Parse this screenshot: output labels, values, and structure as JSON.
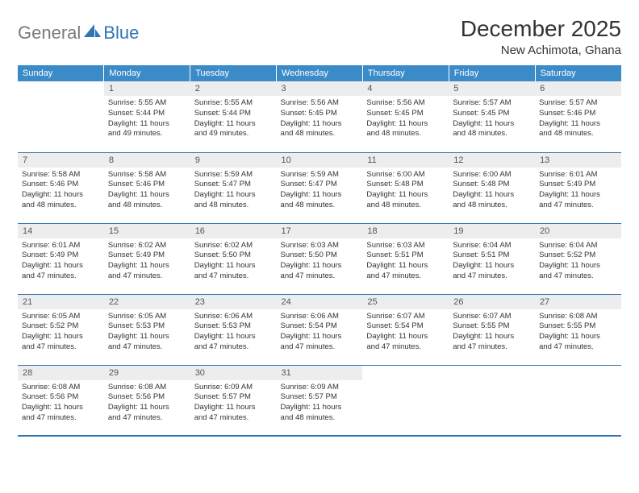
{
  "logo": {
    "part1": "General",
    "part2": "Blue"
  },
  "title": "December 2025",
  "location": "New Achimota, Ghana",
  "colors": {
    "header_bg": "#3b8bc9",
    "header_text": "#ffffff",
    "daynum_bg": "#ededed",
    "daynum_text": "#555555",
    "border": "#2f75b5",
    "logo_gray": "#7a7a7a",
    "logo_blue": "#2f75b5",
    "body_text": "#333333"
  },
  "weekdays": [
    "Sunday",
    "Monday",
    "Tuesday",
    "Wednesday",
    "Thursday",
    "Friday",
    "Saturday"
  ],
  "weeks": [
    [
      {
        "empty": true
      },
      {
        "n": "1",
        "sr": "Sunrise: 5:55 AM",
        "ss": "Sunset: 5:44 PM",
        "d1": "Daylight: 11 hours",
        "d2": "and 49 minutes."
      },
      {
        "n": "2",
        "sr": "Sunrise: 5:55 AM",
        "ss": "Sunset: 5:44 PM",
        "d1": "Daylight: 11 hours",
        "d2": "and 49 minutes."
      },
      {
        "n": "3",
        "sr": "Sunrise: 5:56 AM",
        "ss": "Sunset: 5:45 PM",
        "d1": "Daylight: 11 hours",
        "d2": "and 48 minutes."
      },
      {
        "n": "4",
        "sr": "Sunrise: 5:56 AM",
        "ss": "Sunset: 5:45 PM",
        "d1": "Daylight: 11 hours",
        "d2": "and 48 minutes."
      },
      {
        "n": "5",
        "sr": "Sunrise: 5:57 AM",
        "ss": "Sunset: 5:45 PM",
        "d1": "Daylight: 11 hours",
        "d2": "and 48 minutes."
      },
      {
        "n": "6",
        "sr": "Sunrise: 5:57 AM",
        "ss": "Sunset: 5:46 PM",
        "d1": "Daylight: 11 hours",
        "d2": "and 48 minutes."
      }
    ],
    [
      {
        "n": "7",
        "sr": "Sunrise: 5:58 AM",
        "ss": "Sunset: 5:46 PM",
        "d1": "Daylight: 11 hours",
        "d2": "and 48 minutes."
      },
      {
        "n": "8",
        "sr": "Sunrise: 5:58 AM",
        "ss": "Sunset: 5:46 PM",
        "d1": "Daylight: 11 hours",
        "d2": "and 48 minutes."
      },
      {
        "n": "9",
        "sr": "Sunrise: 5:59 AM",
        "ss": "Sunset: 5:47 PM",
        "d1": "Daylight: 11 hours",
        "d2": "and 48 minutes."
      },
      {
        "n": "10",
        "sr": "Sunrise: 5:59 AM",
        "ss": "Sunset: 5:47 PM",
        "d1": "Daylight: 11 hours",
        "d2": "and 48 minutes."
      },
      {
        "n": "11",
        "sr": "Sunrise: 6:00 AM",
        "ss": "Sunset: 5:48 PM",
        "d1": "Daylight: 11 hours",
        "d2": "and 48 minutes."
      },
      {
        "n": "12",
        "sr": "Sunrise: 6:00 AM",
        "ss": "Sunset: 5:48 PM",
        "d1": "Daylight: 11 hours",
        "d2": "and 48 minutes."
      },
      {
        "n": "13",
        "sr": "Sunrise: 6:01 AM",
        "ss": "Sunset: 5:49 PM",
        "d1": "Daylight: 11 hours",
        "d2": "and 47 minutes."
      }
    ],
    [
      {
        "n": "14",
        "sr": "Sunrise: 6:01 AM",
        "ss": "Sunset: 5:49 PM",
        "d1": "Daylight: 11 hours",
        "d2": "and 47 minutes."
      },
      {
        "n": "15",
        "sr": "Sunrise: 6:02 AM",
        "ss": "Sunset: 5:49 PM",
        "d1": "Daylight: 11 hours",
        "d2": "and 47 minutes."
      },
      {
        "n": "16",
        "sr": "Sunrise: 6:02 AM",
        "ss": "Sunset: 5:50 PM",
        "d1": "Daylight: 11 hours",
        "d2": "and 47 minutes."
      },
      {
        "n": "17",
        "sr": "Sunrise: 6:03 AM",
        "ss": "Sunset: 5:50 PM",
        "d1": "Daylight: 11 hours",
        "d2": "and 47 minutes."
      },
      {
        "n": "18",
        "sr": "Sunrise: 6:03 AM",
        "ss": "Sunset: 5:51 PM",
        "d1": "Daylight: 11 hours",
        "d2": "and 47 minutes."
      },
      {
        "n": "19",
        "sr": "Sunrise: 6:04 AM",
        "ss": "Sunset: 5:51 PM",
        "d1": "Daylight: 11 hours",
        "d2": "and 47 minutes."
      },
      {
        "n": "20",
        "sr": "Sunrise: 6:04 AM",
        "ss": "Sunset: 5:52 PM",
        "d1": "Daylight: 11 hours",
        "d2": "and 47 minutes."
      }
    ],
    [
      {
        "n": "21",
        "sr": "Sunrise: 6:05 AM",
        "ss": "Sunset: 5:52 PM",
        "d1": "Daylight: 11 hours",
        "d2": "and 47 minutes."
      },
      {
        "n": "22",
        "sr": "Sunrise: 6:05 AM",
        "ss": "Sunset: 5:53 PM",
        "d1": "Daylight: 11 hours",
        "d2": "and 47 minutes."
      },
      {
        "n": "23",
        "sr": "Sunrise: 6:06 AM",
        "ss": "Sunset: 5:53 PM",
        "d1": "Daylight: 11 hours",
        "d2": "and 47 minutes."
      },
      {
        "n": "24",
        "sr": "Sunrise: 6:06 AM",
        "ss": "Sunset: 5:54 PM",
        "d1": "Daylight: 11 hours",
        "d2": "and 47 minutes."
      },
      {
        "n": "25",
        "sr": "Sunrise: 6:07 AM",
        "ss": "Sunset: 5:54 PM",
        "d1": "Daylight: 11 hours",
        "d2": "and 47 minutes."
      },
      {
        "n": "26",
        "sr": "Sunrise: 6:07 AM",
        "ss": "Sunset: 5:55 PM",
        "d1": "Daylight: 11 hours",
        "d2": "and 47 minutes."
      },
      {
        "n": "27",
        "sr": "Sunrise: 6:08 AM",
        "ss": "Sunset: 5:55 PM",
        "d1": "Daylight: 11 hours",
        "d2": "and 47 minutes."
      }
    ],
    [
      {
        "n": "28",
        "sr": "Sunrise: 6:08 AM",
        "ss": "Sunset: 5:56 PM",
        "d1": "Daylight: 11 hours",
        "d2": "and 47 minutes."
      },
      {
        "n": "29",
        "sr": "Sunrise: 6:08 AM",
        "ss": "Sunset: 5:56 PM",
        "d1": "Daylight: 11 hours",
        "d2": "and 47 minutes."
      },
      {
        "n": "30",
        "sr": "Sunrise: 6:09 AM",
        "ss": "Sunset: 5:57 PM",
        "d1": "Daylight: 11 hours",
        "d2": "and 47 minutes."
      },
      {
        "n": "31",
        "sr": "Sunrise: 6:09 AM",
        "ss": "Sunset: 5:57 PM",
        "d1": "Daylight: 11 hours",
        "d2": "and 48 minutes."
      },
      {
        "empty": true
      },
      {
        "empty": true
      },
      {
        "empty": true
      }
    ]
  ]
}
